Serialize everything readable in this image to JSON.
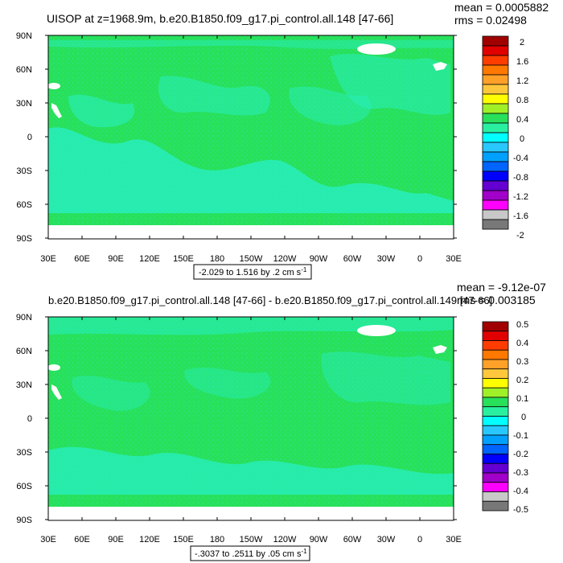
{
  "panels": [
    {
      "title": "UISOP at z=1968.9m, b.e20.B1850.f09_g17.pi_control.all.148 [47-66]",
      "mean": "mean = 0.0005882",
      "rms": "rms = 0.02498",
      "range_label": "-2.029 to 1.516 by .2 cm s",
      "range_sup": "-1",
      "colorbar_labels": [
        "2",
        "1.6",
        "1.2",
        "0.8",
        "0.4",
        "0",
        "-0.4",
        "-0.8",
        "-1.2",
        "-1.6",
        "-2"
      ]
    },
    {
      "title": "b.e20.B1850.f09_g17.pi_control.all.148 [47-66] - b.e20.B1850.f09_g17.pi_control.all.149 [47-66]",
      "mean": "mean = -9.12e-07",
      "rms": "rms = 0.003185",
      "range_label": "-.3037 to .2511 by .05 cm s",
      "range_sup": "-1",
      "colorbar_labels": [
        "0.5",
        "0.4",
        "0.3",
        "0.2",
        "0.1",
        "0",
        "-0.1",
        "-0.2",
        "-0.3",
        "-0.4",
        "-0.5"
      ]
    }
  ],
  "lat_labels": [
    "90N",
    "60N",
    "30N",
    "0",
    "30S",
    "60S",
    "90S"
  ],
  "lon_labels": [
    "30E",
    "60E",
    "90E",
    "120E",
    "150E",
    "180",
    "150W",
    "120W",
    "90W",
    "60W",
    "30W",
    "0",
    "30E"
  ],
  "colorbar_colors": [
    "#a00000",
    "#e00000",
    "#ff3c00",
    "#ff7800",
    "#ffa028",
    "#ffc83c",
    "#ffff00",
    "#a0f028",
    "#28e05a",
    "#28f0a0",
    "#00ffff",
    "#28c8ff",
    "#00a0ff",
    "#0064ff",
    "#0000ff",
    "#6400d2",
    "#a000c8",
    "#ff00ff",
    "#c8c8c8",
    "#787878"
  ],
  "map_colors": {
    "base": "#28e05a",
    "cyan": "#28f0c8",
    "land": "#ffffff"
  }
}
